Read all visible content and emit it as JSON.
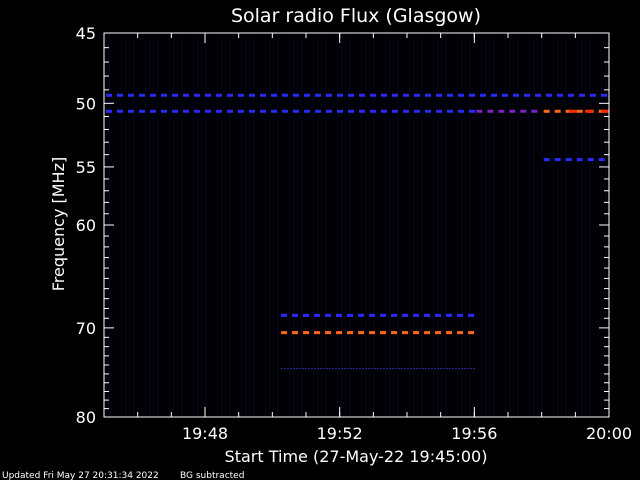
{
  "chart_data": {
    "type": "heatmap",
    "title": "Solar radio Flux (Glasgow)",
    "xlabel": "Start Time (27-May-22 19:45:00)",
    "ylabel": "Frequency [MHz]",
    "x_unit": "time (HH:MM, 27-May-22)",
    "xlim": [
      "19:45",
      "20:00"
    ],
    "ylim": [
      45,
      80
    ],
    "y_scale": "log",
    "y_inverted": true,
    "x_ticks": [
      "19:48",
      "19:52",
      "19:56",
      "20:00"
    ],
    "y_ticks": [
      45,
      50,
      55,
      60,
      70,
      80
    ],
    "background_color": "#000000",
    "colors": {
      "background_noise": "#05052e",
      "weak": "#2a2aff",
      "moderate": "#7a22c8",
      "strong": "#ff6a1a",
      "peak": "#ff2a00"
    },
    "bands": [
      {
        "freq_mhz": 49.4,
        "start": "19:45",
        "end": "20:00",
        "level": "weak"
      },
      {
        "freq_mhz": 50.6,
        "start": "19:45",
        "end": "19:56",
        "level": "weak"
      },
      {
        "freq_mhz": 50.6,
        "start": "19:56",
        "end": "19:58",
        "level": "moderate"
      },
      {
        "freq_mhz": 50.6,
        "start": "19:58",
        "end": "20:00",
        "level": "strong"
      },
      {
        "freq_mhz": 54.4,
        "start": "19:58",
        "end": "20:00",
        "level": "weak"
      },
      {
        "freq_mhz": 68.7,
        "start": "19:50.2",
        "end": "19:56",
        "level": "weak"
      },
      {
        "freq_mhz": 70.5,
        "start": "19:50.2",
        "end": "19:56",
        "level": "strong"
      },
      {
        "freq_mhz": 74.4,
        "start": "19:50.2",
        "end": "19:56",
        "level": "faint"
      }
    ]
  },
  "footer": {
    "updated": "Updated Fri May 27 20:31:34 2022",
    "note": "BG subtracted"
  }
}
